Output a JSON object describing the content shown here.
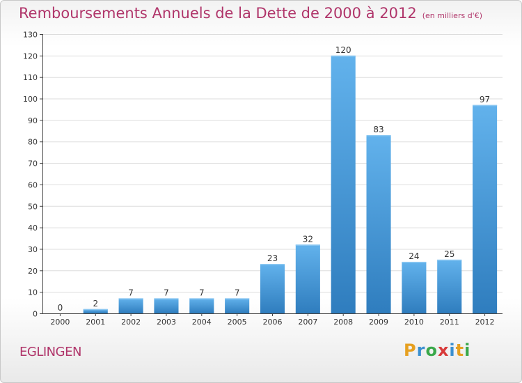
{
  "chart_data": {
    "type": "bar",
    "title": "Remboursements Annuels de la Dette de 2000 à 2012",
    "unit": "(en milliers d'€)",
    "categories": [
      "2000",
      "2001",
      "2002",
      "2003",
      "2004",
      "2005",
      "2006",
      "2007",
      "2008",
      "2009",
      "2010",
      "2011",
      "2012"
    ],
    "values": [
      0,
      2,
      7,
      7,
      7,
      7,
      23,
      32,
      120,
      83,
      24,
      25,
      97
    ],
    "ylim": [
      0,
      130
    ],
    "yticks": [
      0,
      10,
      20,
      30,
      40,
      50,
      60,
      70,
      80,
      90,
      100,
      110,
      120,
      130
    ],
    "grid": true,
    "bar_color": "#4a9ddc",
    "bar_top_color": "#62b2ec",
    "bar_bottom_color": "#2f7dbe"
  },
  "commune": "EGLINGEN",
  "brand": {
    "letters": [
      "P",
      "r",
      "o",
      "x",
      "i",
      "t",
      "i"
    ],
    "colors": [
      "#e6a020",
      "#3a8fd0",
      "#3aa84a",
      "#d83a3a",
      "#3a8fd0",
      "#e6a020",
      "#3aa84a"
    ]
  },
  "colors": {
    "title": "#b0356a",
    "grid": "#dddddd",
    "axis": "#444444"
  }
}
